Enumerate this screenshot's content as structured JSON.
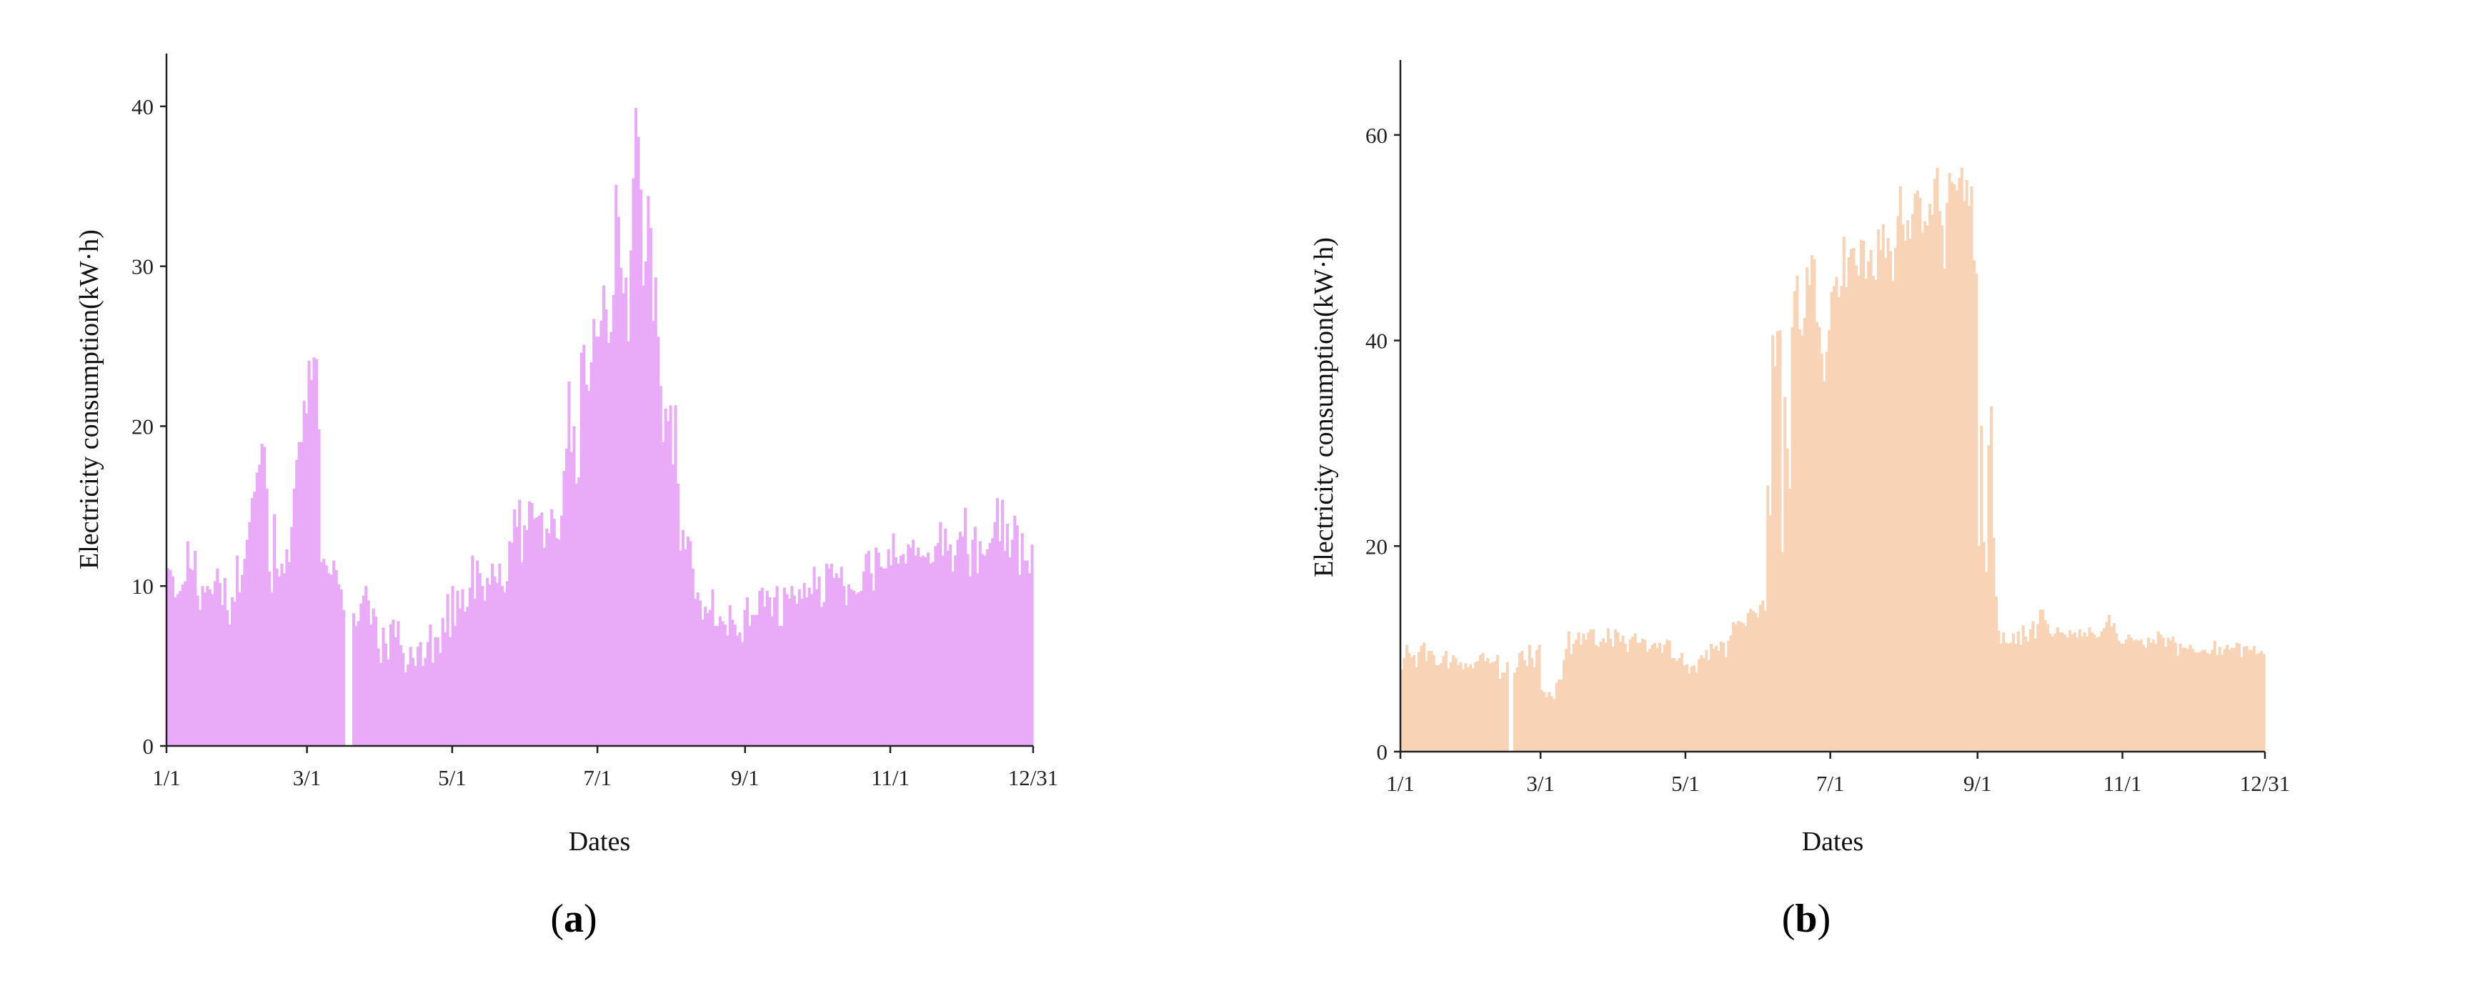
{
  "chart_data": [
    {
      "type": "bar",
      "panel_label": "a",
      "xlabel": "Dates",
      "ylabel": "Electricity consumption(kW·h)",
      "xlim": [
        "1/1",
        "12/31"
      ],
      "ylim": [
        0,
        45
      ],
      "y_ticks": [
        0,
        10,
        20,
        30,
        40
      ],
      "x_ticks": [
        "1/1",
        "3/1",
        "5/1",
        "7/1",
        "9/1",
        "11/1",
        "12/31"
      ],
      "grid": false,
      "color": "#e9aaf8",
      "x_start": "1/1",
      "values": [
        11.1,
        11.0,
        10.6,
        9.3,
        9.5,
        9.7,
        10.1,
        10.3,
        12.8,
        11.1,
        11.0,
        12.2,
        9.4,
        8.5,
        10.0,
        9.6,
        10.0,
        9.8,
        9.5,
        10.3,
        11.1,
        10.2,
        8.8,
        10.5,
        8.5,
        7.6,
        9.3,
        9.0,
        11.9,
        9.6,
        10.7,
        11.7,
        12.9,
        14.0,
        15.5,
        15.9,
        17.1,
        17.6,
        18.9,
        18.7,
        16.1,
        10.9,
        9.6,
        14.5,
        11.1,
        10.6,
        11.4,
        10.8,
        12.3,
        11.5,
        13.7,
        16.1,
        17.9,
        19.0,
        19.0,
        21.6,
        20.8,
        24.1,
        22.9,
        24.3,
        24.2,
        19.8,
        11.5,
        11.7,
        11.3,
        10.8,
        10.7,
        11.6,
        11.0,
        10.1,
        9.8,
        8.5,
        0.0,
        0.0,
        0.0,
        8.3,
        7.5,
        7.8,
        8.9,
        9.4,
        10.0,
        9.1,
        7.6,
        8.6,
        8.1,
        6.1,
        5.2,
        7.4,
        6.4,
        5.4,
        7.6,
        7.9,
        6.8,
        7.8,
        6.3,
        5.8,
        4.6,
        5.1,
        6.2,
        5.5,
        5.0,
        6.2,
        6.5,
        5.0,
        5.5,
        6.5,
        7.6,
        5.2,
        6.8,
        6.8,
        5.8,
        8.0,
        7.1,
        9.5,
        6.8,
        10.0,
        7.5,
        9.7,
        8.6,
        9.8,
        8.4,
        8.7,
        9.9,
        11.9,
        9.2,
        11.6,
        10.8,
        10.0,
        9.1,
        10.5,
        10.1,
        11.4,
        10.6,
        10.2,
        11.4,
        10.0,
        9.6,
        10.3,
        12.8,
        12.7,
        14.8,
        13.7,
        15.4,
        11.5,
        13.8,
        13.5,
        15.3,
        15.2,
        14.2,
        14.3,
        14.4,
        14.6,
        12.4,
        13.6,
        13.3,
        14.8,
        14.2,
        13.0,
        12.9,
        14.4,
        17.2,
        18.6,
        22.8,
        18.4,
        20.0,
        16.4,
        16.8,
        24.6,
        25.1,
        22.6,
        22.2,
        24.0,
        26.7,
        25.6,
        25.6,
        26.6,
        28.8,
        27.3,
        25.2,
        25.9,
        28.2,
        35.1,
        33.1,
        29.9,
        28.3,
        29.3,
        25.3,
        31.0,
        35.5,
        39.9,
        38.1,
        34.8,
        28.8,
        30.3,
        34.4,
        32.4,
        26.6,
        29.3,
        25.6,
        22.5,
        19.0,
        21.1,
        20.3,
        21.3,
        17.6,
        21.3,
        16.4,
        12.2,
        13.5,
        12.3,
        13.1,
        12.8,
        11.1,
        9.2,
        9.6,
        9.1,
        7.9,
        8.7,
        8.3,
        8.5,
        9.8,
        7.5,
        7.5,
        8.1,
        7.8,
        7.6,
        6.9,
        8.8,
        7.9,
        7.6,
        6.9,
        7.1,
        6.5,
        8.5,
        9.3,
        7.5,
        8.2,
        8.2,
        8.2,
        9.7,
        9.9,
        8.7,
        9.7,
        9.3,
        8.1,
        9.3,
        10.0,
        7.5,
        7.5,
        9.9,
        9.5,
        9.2,
        10.0,
        9.4,
        8.9,
        9.8,
        9.2,
        10.2,
        9.3,
        9.9,
        9.5,
        11.2,
        9.8,
        10.6,
        8.7,
        9.0,
        11.4,
        11.1,
        11.4,
        10.5,
        10.8,
        10.5,
        11.2,
        10.0,
        8.8,
        10.1,
        9.8,
        9.7,
        9.5,
        9.6,
        9.7,
        10.9,
        12.0,
        12.2,
        10.8,
        9.7,
        12.4,
        12.1,
        11.2,
        11.1,
        11.1,
        12.3,
        11.3,
        13.3,
        11.8,
        11.4,
        11.9,
        12.0,
        11.4,
        12.6,
        12.4,
        12.9,
        11.9,
        12.4,
        11.8,
        11.9,
        11.8,
        12.1,
        11.4,
        11.5,
        12.5,
        12.7,
        14.0,
        11.9,
        13.6,
        12.2,
        12.6,
        10.9,
        11.9,
        12.9,
        13.4,
        13.1,
        14.9,
        12.0,
        10.6,
        12.9,
        13.7,
        10.8,
        12.8,
        12.0,
        11.9,
        12.3,
        12.7,
        13.0,
        14.0,
        15.5,
        12.8,
        15.4,
        12.2,
        13.9,
        11.8,
        12.9,
        14.4,
        13.8,
        10.7,
        13.3,
        11.6,
        11.6,
        10.8,
        12.6
      ]
    },
    {
      "type": "bar",
      "panel_label": "b",
      "xlabel": "Dates",
      "ylabel": "Electricity consumption(kW·h)",
      "xlim": [
        "1/1",
        "12/31"
      ],
      "ylim": [
        0,
        70
      ],
      "y_ticks": [
        0,
        20,
        40,
        60
      ],
      "x_ticks": [
        "1/1",
        "3/1",
        "5/1",
        "7/1",
        "9/1",
        "11/1",
        "12/31"
      ],
      "grid": false,
      "color": "#f8d3b5",
      "x_start": "1/1",
      "values": [
        8.0,
        9.1,
        10.4,
        9.6,
        9.2,
        9.4,
        8.2,
        9.7,
        10.3,
        10.6,
        8.8,
        9.8,
        9.8,
        9.4,
        8.4,
        8.4,
        8.6,
        9.3,
        9.8,
        8.1,
        8.7,
        9.4,
        9.1,
        8.4,
        8.7,
        8.0,
        8.6,
        8.2,
        8.5,
        8.1,
        8.7,
        8.8,
        9.4,
        9.6,
        8.8,
        9.1,
        8.6,
        8.7,
        8.8,
        9.4,
        7.1,
        7.7,
        7.7,
        8.7,
        0.0,
        0.0,
        7.7,
        8.2,
        9.6,
        9.8,
        8.9,
        8.3,
        10.4,
        9.1,
        8.2,
        9.9,
        10.4,
        6.0,
        5.8,
        5.3,
        5.8,
        5.4,
        5.1,
        6.7,
        7.0,
        7.0,
        8.9,
        10.0,
        11.7,
        9.5,
        10.5,
        10.9,
        11.6,
        10.4,
        11.5,
        10.9,
        11.6,
        11.9,
        11.9,
        10.4,
        10.2,
        10.7,
        11.0,
        10.6,
        12.0,
        11.0,
        10.2,
        11.9,
        11.6,
        10.7,
        11.3,
        10.5,
        9.7,
        10.9,
        11.2,
        11.5,
        10.6,
        10.6,
        11.0,
        10.9,
        9.7,
        10.0,
        10.4,
        10.6,
        10.1,
        10.6,
        9.6,
        10.4,
        10.9,
        10.8,
        9.1,
        9.1,
        8.8,
        9.1,
        9.6,
        8.4,
        8.5,
        7.6,
        8.3,
        8.4,
        7.7,
        9.0,
        9.4,
        9.1,
        9.9,
        8.9,
        10.5,
        10.0,
        10.3,
        9.8,
        10.7,
        10.6,
        9.2,
        10.8,
        11.3,
        12.6,
        12.4,
        12.7,
        12.6,
        12.5,
        12.2,
        13.5,
        13.9,
        13.7,
        13.5,
        13.1,
        14.3,
        14.7,
        13.7,
        25.9,
        23.0,
        40.5,
        37.5,
        40.9,
        41.0,
        19.4,
        34.5,
        29.5,
        25.6,
        41.3,
        44.8,
        46.3,
        41.1,
        40.5,
        42.2,
        47.1,
        45.4,
        48.3,
        47.9,
        41.8,
        41.3,
        38.7,
        36.0,
        38.9,
        41.0,
        44.7,
        45.3,
        46.2,
        44.2,
        45.3,
        50.1,
        45.2,
        48.1,
        48.9,
        49.0,
        47.3,
        46.3,
        49.8,
        49.7,
        46.0,
        47.7,
        48.8,
        46.3,
        45.9,
        50.8,
        48.8,
        51.3,
        48.0,
        50.0,
        48.7,
        45.8,
        49.0,
        52.1,
        55.0,
        51.3,
        49.7,
        51.7,
        49.9,
        52.3,
        54.3,
        54.6,
        53.9,
        50.5,
        51.6,
        51.2,
        53.3,
        52.2,
        55.7,
        56.8,
        52.6,
        51.2,
        47.0,
        53.4,
        56.3,
        55.4,
        55.2,
        54.6,
        55.8,
        56.8,
        53.6,
        55.6,
        53.1,
        55.0,
        47.8,
        46.5,
        20.0,
        31.7,
        20.4,
        17.5,
        29.8,
        33.6,
        20.8,
        15.1,
        11.8,
        10.5,
        11.6,
        10.6,
        10.5,
        10.6,
        11.5,
        10.5,
        11.7,
        10.4,
        12.3,
        11.2,
        10.7,
        11.9,
        12.7,
        11.0,
        12.4,
        13.8,
        13.8,
        12.8,
        12.4,
        11.5,
        11.2,
        11.5,
        12.1,
        11.6,
        11.6,
        11.4,
        11.1,
        11.8,
        11.4,
        11.6,
        11.1,
        11.9,
        11.2,
        11.6,
        11.2,
        12.1,
        11.6,
        11.4,
        11.1,
        11.2,
        11.7,
        12.0,
        12.6,
        13.3,
        12.2,
        12.5,
        11.5,
        10.8,
        10.5,
        10.5,
        10.9,
        11.4,
        11.1,
        10.8,
        10.9,
        10.8,
        10.9,
        10.4,
        10.1,
        11.1,
        10.6,
        10.9,
        10.5,
        11.7,
        11.4,
        11.1,
        10.2,
        11.1,
        10.8,
        11.2,
        10.6,
        9.3,
        10.5,
        10.1,
        10.1,
        10.0,
        10.4,
        10.0,
        9.7,
        9.6,
        9.7,
        9.9,
        9.9,
        9.6,
        9.5,
        9.9,
        10.8,
        9.4,
        10.2,
        9.4,
        10.0,
        10.4,
        9.9,
        10.1,
        10.1,
        10.6,
        10.5,
        9.2,
        10.2,
        10.3,
        9.9,
        9.9,
        10.3,
        9.5,
        9.6,
        9.8,
        9.5
      ]
    }
  ],
  "captions": [
    {
      "open": "(",
      "letter": "a",
      "close": ")"
    },
    {
      "open": "(",
      "letter": "b",
      "close": ")"
    }
  ]
}
